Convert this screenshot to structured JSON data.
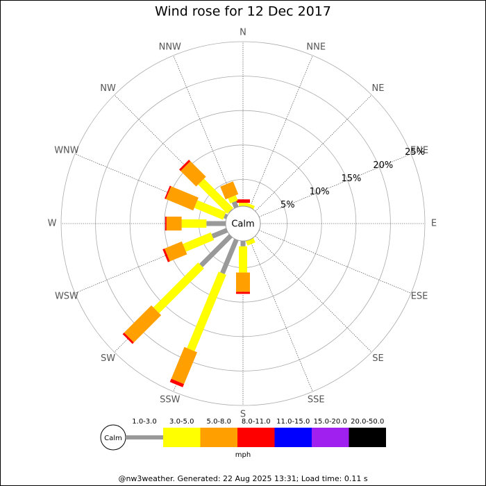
{
  "chart_data": {
    "type": "windrose",
    "title": "Wind rose for 12 Dec 2017",
    "categories": [
      "N",
      "NNE",
      "NE",
      "ENE",
      "E",
      "ESE",
      "SE",
      "SSE",
      "S",
      "SSW",
      "SW",
      "WSW",
      "W",
      "WNW",
      "NW",
      "NNW"
    ],
    "calm_label": "Calm",
    "unit_label": "mph",
    "footer": "@nw3weather. Generated: 22 Aug 2025 13:31; Load time: 0.11 s",
    "rlim": [
      0,
      25
    ],
    "rticks": [
      {
        "value": 5,
        "label": "5%"
      },
      {
        "value": 10,
        "label": "10%"
      },
      {
        "value": 15,
        "label": "15%"
      },
      {
        "value": 20,
        "label": "20%"
      },
      {
        "value": 25,
        "label": "25%"
      }
    ],
    "series": [
      {
        "name": "1.0-3.0",
        "color": "#999999",
        "values": [
          0,
          0,
          0,
          0,
          0,
          0,
          0,
          0,
          1.9,
          6.4,
          7.2,
          3.4,
          3.9,
          1.5,
          1.2,
          2.0
        ]
      },
      {
        "name": "3.0-5.0",
        "color": "#ffff00",
        "values": [
          1.6,
          1.6,
          0,
          0,
          0,
          0,
          0,
          1.8,
          3.8,
          12.0,
          9.2,
          4.4,
          3.6,
          4.5,
          6.0,
          0.8
        ]
      },
      {
        "name": "5.0-8.0",
        "color": "#ff9f00",
        "values": [
          0,
          0,
          0,
          0,
          0,
          0,
          0,
          0,
          2.8,
          5.0,
          5.6,
          2.7,
          2.2,
          4.3,
          3.2,
          2.0
        ]
      },
      {
        "name": "8.0-11.0",
        "color": "#ff0000",
        "values": [
          0.5,
          0,
          0,
          0,
          0,
          0,
          0,
          0,
          0.3,
          0.5,
          0.3,
          0.3,
          0.2,
          0.2,
          0.3,
          0
        ]
      },
      {
        "name": "11.0-15.0",
        "color": "#0000ff",
        "values": [
          0,
          0,
          0,
          0,
          0,
          0,
          0,
          0,
          0,
          0,
          0,
          0,
          0,
          0,
          0,
          0
        ]
      },
      {
        "name": "15.0-20.0",
        "color": "#a020f0",
        "values": [
          0,
          0,
          0,
          0,
          0,
          0,
          0,
          0,
          0,
          0,
          0,
          0,
          0,
          0,
          0,
          0
        ]
      },
      {
        "name": "20.0-50.0",
        "color": "#000000",
        "values": [
          0,
          0,
          0,
          0,
          0,
          0,
          0,
          0,
          0,
          0,
          0,
          0,
          0,
          0,
          0,
          0
        ]
      }
    ]
  }
}
